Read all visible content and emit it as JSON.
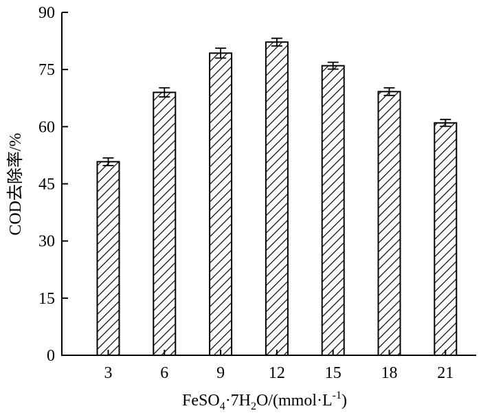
{
  "chart_data": {
    "type": "bar",
    "categories": [
      "3",
      "6",
      "9",
      "12",
      "15",
      "18",
      "21"
    ],
    "values": [
      50.8,
      69.0,
      79.3,
      82.2,
      76.0,
      69.2,
      61.0
    ],
    "errors": [
      1.0,
      1.2,
      1.3,
      1.0,
      0.9,
      1.0,
      0.9
    ],
    "xlabel": "FeSO4·7H2O/(mmol·L-1)",
    "xlabel_parts": {
      "p1": "FeSO",
      "sub1": "4",
      "p2": "·7H",
      "sub2": "2",
      "p3": "O/(mmol·L",
      "sup": "-1",
      "p4": ")"
    },
    "ylabel": "COD去除率/%",
    "ylim": [
      0,
      90
    ],
    "yticks": [
      "0",
      "15",
      "30",
      "45",
      "60",
      "75",
      "90"
    ],
    "bar_fill": "diagonal-hatch",
    "bar_color": "#000000",
    "grid": false,
    "legend": "none"
  }
}
